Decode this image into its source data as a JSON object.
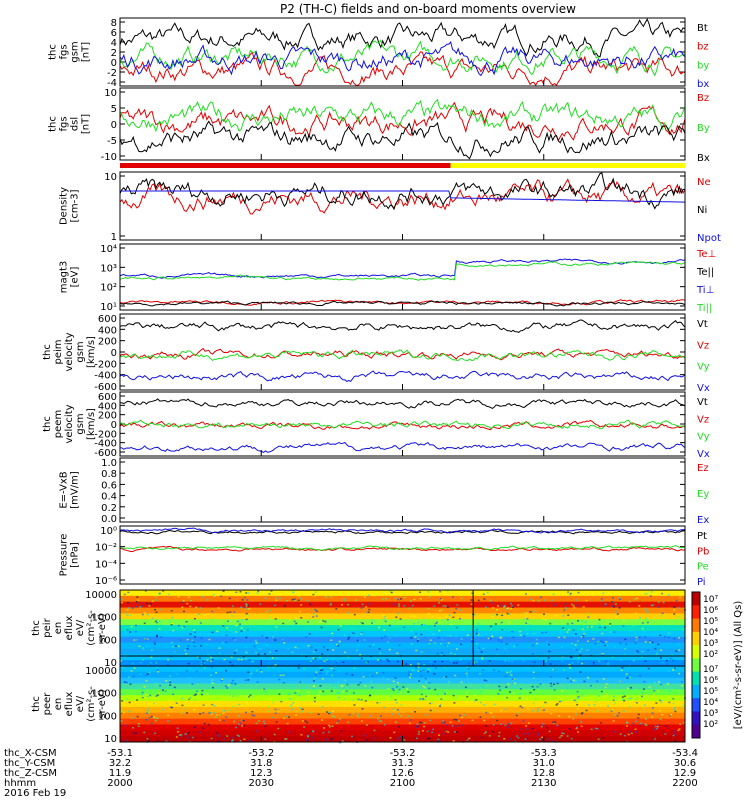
{
  "title": "P2 (TH-C) fields and on-board moments overview",
  "colors": {
    "black": "#000000",
    "red": "#e00000",
    "green": "#22dd22",
    "blue": "#1010e0",
    "yellow": "#ffff00"
  },
  "chart_data": {
    "type": "line",
    "time_axis": {
      "tick_labels": [
        "2000",
        "2030",
        "2100",
        "2130",
        "2200"
      ],
      "rows": [
        {
          "label": "thc_X-CSM",
          "values": [
            "-53.1",
            "-53.2",
            "-53.2",
            "-53.3",
            "-53.4"
          ]
        },
        {
          "label": "thc_Y-CSM",
          "values": [
            "32.2",
            "31.8",
            "31.3",
            "31.0",
            "30.6"
          ]
        },
        {
          "label": "thc_Z-CSM",
          "values": [
            "11.9",
            "12.3",
            "12.6",
            "12.8",
            "12.9"
          ]
        },
        {
          "label": "hhmm",
          "values": [
            "2000",
            "2030",
            "2100",
            "2130",
            "2200"
          ]
        }
      ],
      "date": "2016 Feb 19"
    },
    "panels": [
      {
        "id": "fgs_gsm",
        "ylabel": [
          "thc",
          "fgs",
          "gsm",
          "[nT]"
        ],
        "ticks": [
          "8",
          "6",
          "4",
          "2",
          "0",
          "-2",
          "-4"
        ],
        "ylim": [
          -4.5,
          8.5
        ],
        "series": [
          {
            "name": "Bt",
            "color": "black",
            "level": 4.5
          },
          {
            "name": "bz",
            "color": "red",
            "level": -1.5
          },
          {
            "name": "by",
            "color": "green",
            "level": 1.0
          },
          {
            "name": "bx",
            "color": "blue",
            "level": 0.5
          }
        ]
      },
      {
        "id": "fgs_dsl",
        "ylabel": [
          "thc",
          "fgs",
          "dsl",
          "[nT]"
        ],
        "ticks": [
          "10",
          "5",
          "0",
          "-5",
          "-10"
        ],
        "ylim": [
          -12,
          11
        ],
        "series": [
          {
            "name": "Bz",
            "color": "red",
            "level": 0
          },
          {
            "name": "By",
            "color": "green",
            "level": 1.5
          },
          {
            "name": "Bx",
            "color": "black",
            "level": -5
          }
        ]
      },
      {
        "id": "density",
        "ylabel": [
          "Density",
          "[cm-3]"
        ],
        "ticks": [
          "10",
          "1"
        ],
        "ylim_log": [
          0,
          1
        ],
        "series": [
          {
            "name": "Ne",
            "color": "red"
          },
          {
            "name": "Ni",
            "color": "black"
          },
          {
            "name": "Npot",
            "color": "blue"
          }
        ]
      },
      {
        "id": "temperature",
        "ylabel": [
          "magt3",
          "[eV]"
        ],
        "ticks": [
          "10⁴",
          "10³",
          "10²",
          "10¹"
        ],
        "ylim_log": [
          1,
          4.5
        ],
        "series": [
          {
            "name": "Te⊥",
            "color": "red"
          },
          {
            "name": "Te||",
            "color": "black"
          },
          {
            "name": "Ti⊥",
            "color": "blue"
          },
          {
            "name": "Ti||",
            "color": "green"
          }
        ]
      },
      {
        "id": "peim_velocity",
        "ylabel": [
          "thc",
          "peim",
          "velocity",
          "gsm",
          "[km/s]"
        ],
        "ticks": [
          "600",
          "400",
          "200",
          "0",
          "-200",
          "-400",
          "-600"
        ],
        "ylim": [
          -650,
          650
        ],
        "series": [
          {
            "name": "Vt",
            "color": "black",
            "level": 430
          },
          {
            "name": "Vz",
            "color": "red",
            "level": -40
          },
          {
            "name": "Vy",
            "color": "green",
            "level": -50
          },
          {
            "name": "Vx",
            "color": "blue",
            "level": -430
          }
        ]
      },
      {
        "id": "peem_velocity",
        "ylabel": [
          "thc",
          "peem",
          "velocity",
          "gsm",
          "[km/s]"
        ],
        "ticks": [
          "600",
          "400",
          "200",
          "0",
          "-200",
          "-400",
          "-600"
        ],
        "ylim": [
          -650,
          650
        ],
        "series": [
          {
            "name": "Vt",
            "color": "black",
            "level": 430
          },
          {
            "name": "Vz",
            "color": "red",
            "level": -40
          },
          {
            "name": "Vy",
            "color": "green",
            "level": -10
          },
          {
            "name": "Vx",
            "color": "blue",
            "level": -470
          }
        ]
      },
      {
        "id": "efield",
        "ylabel": [
          "E=-VxB",
          "[mV/m]"
        ],
        "ticks": [
          "1.0",
          "0.8",
          "0.6",
          "0.4",
          "0.2",
          "0.0"
        ],
        "ylim": [
          0,
          1
        ],
        "series": [
          {
            "name": "Ez",
            "color": "red"
          },
          {
            "name": "Ey",
            "color": "green"
          },
          {
            "name": "Ex",
            "color": "blue"
          }
        ]
      },
      {
        "id": "pressure",
        "ylabel": [
          "Pressure",
          "[nPa]"
        ],
        "ticks": [
          "10⁰",
          "10⁻²",
          "10⁻⁴",
          "10⁻⁶"
        ],
        "ylim_log": [
          -6.5,
          0
        ],
        "series": [
          {
            "name": "Pt",
            "color": "black"
          },
          {
            "name": "Pb",
            "color": "red"
          },
          {
            "name": "Pe",
            "color": "green"
          },
          {
            "name": "Pi",
            "color": "blue"
          }
        ]
      },
      {
        "id": "peir_spec",
        "type": "heatmap",
        "ylabel": [
          "thc",
          "peir",
          "en",
          "eflux",
          "eV/",
          "(cm²-s-",
          "sr-eV)"
        ],
        "ticks": [
          "10000",
          "1000",
          "100",
          "10"
        ]
      },
      {
        "id": "peer_spec",
        "type": "heatmap",
        "ylabel": [
          "thc",
          "peer",
          "en",
          "eflux",
          "eV/",
          "(cm²-s-",
          "sr-eV)"
        ],
        "ticks": [
          "10000",
          "1000",
          "100",
          "10"
        ]
      }
    ],
    "colorbar": {
      "label": "[eV/(cm²-s-sr-eV)] (All Qs)",
      "ticks_top": [
        "10⁷",
        "10⁶",
        "10⁵",
        "10⁴",
        "10³",
        "10²"
      ],
      "ticks_bottom": [
        "10⁷",
        "10⁶",
        "10⁵",
        "10⁴",
        "10³",
        "10²"
      ]
    }
  }
}
